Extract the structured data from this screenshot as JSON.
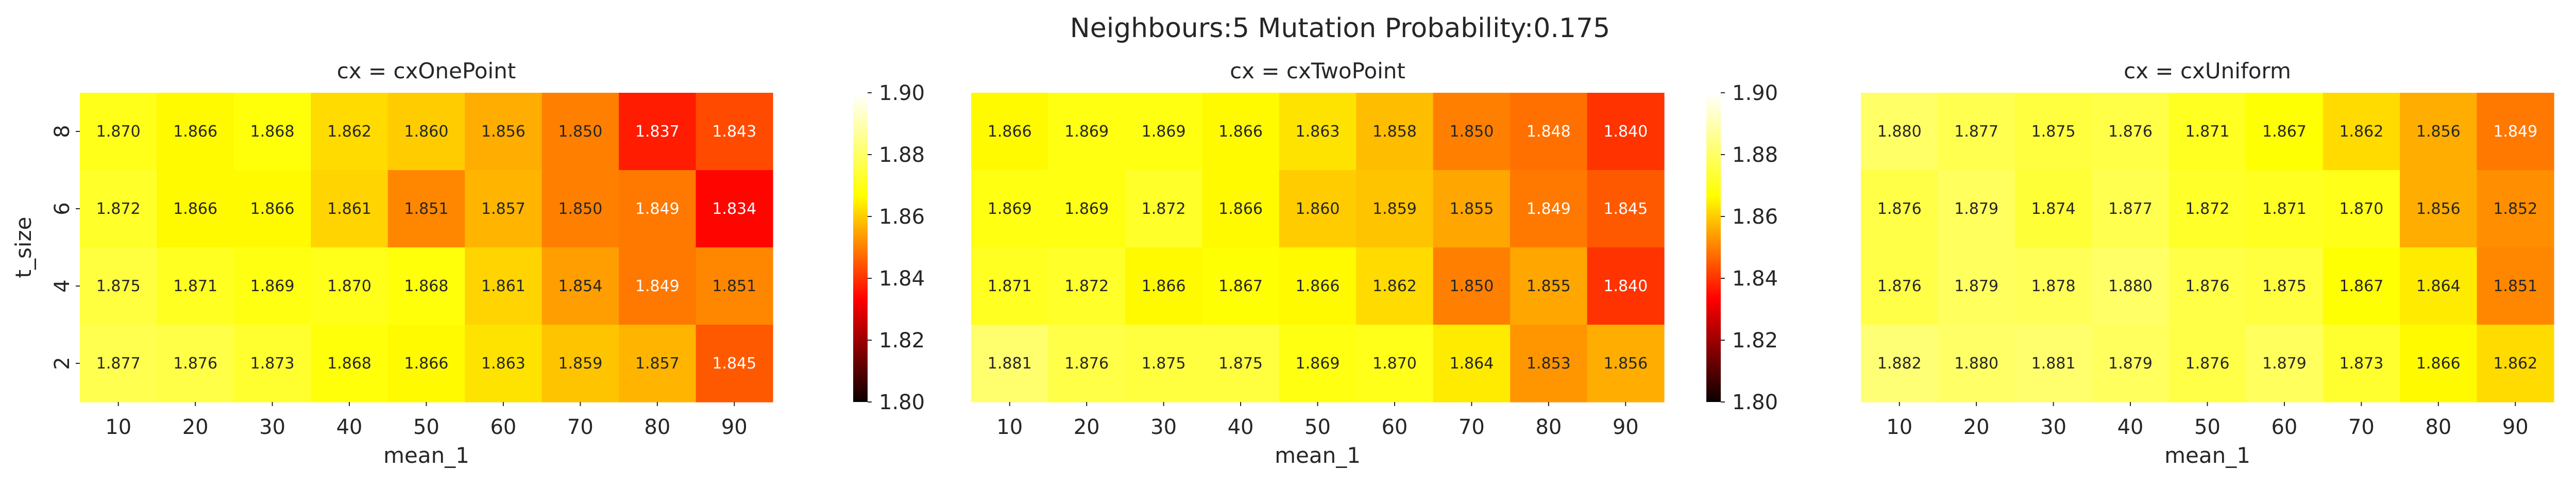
{
  "figure_title": "Neighbours:5 Mutation Probability:0.175",
  "colorscale": {
    "name": "hot",
    "stops": [
      [
        0.0,
        "#0b0000"
      ],
      [
        0.3333,
        "#ff0000"
      ],
      [
        0.6667,
        "#ffff00"
      ],
      [
        1.0,
        "#ffffff"
      ]
    ]
  },
  "chart_data": [
    {
      "type": "heatmap",
      "title": "cx = cxOnePoint",
      "xlabel": "mean_1",
      "ylabel": "t_size",
      "x": [
        10,
        20,
        30,
        40,
        50,
        60,
        70,
        80,
        90
      ],
      "y": [
        8,
        6,
        4,
        2
      ],
      "z": [
        [
          1.87,
          1.866,
          1.868,
          1.862,
          1.86,
          1.856,
          1.85,
          1.837,
          1.843
        ],
        [
          1.872,
          1.866,
          1.866,
          1.861,
          1.851,
          1.857,
          1.85,
          1.849,
          1.834
        ],
        [
          1.875,
          1.871,
          1.869,
          1.87,
          1.868,
          1.861,
          1.854,
          1.849,
          1.851
        ],
        [
          1.877,
          1.876,
          1.873,
          1.868,
          1.866,
          1.863,
          1.859,
          1.857,
          1.845
        ]
      ],
      "labels": [
        [
          "1.870",
          "1.866",
          "1.868",
          "1.862",
          "1.860",
          "1.856",
          "1.850",
          "1.837",
          "1.843"
        ],
        [
          "1.872",
          "1.866",
          "1.866",
          "1.861",
          "1.851",
          "1.857",
          "1.850",
          "1.849",
          "1.834"
        ],
        [
          "1.875",
          "1.871",
          "1.869",
          "1.870",
          "1.868",
          "1.861",
          "1.854",
          "1.849",
          "1.851"
        ],
        [
          "1.877",
          "1.876",
          "1.873",
          "1.868",
          "1.866",
          "1.863",
          "1.859",
          "1.857",
          "1.845"
        ]
      ],
      "vmin": 1.8,
      "vmax": 1.9,
      "colorbar_ticks": [
        "1.80",
        "1.82",
        "1.84",
        "1.86",
        "1.88",
        "1.90"
      ]
    },
    {
      "type": "heatmap",
      "title": "cx = cxTwoPoint",
      "xlabel": "mean_1",
      "ylabel": "",
      "x": [
        10,
        20,
        30,
        40,
        50,
        60,
        70,
        80,
        90
      ],
      "y": [
        8,
        6,
        4,
        2
      ],
      "z": [
        [
          1.866,
          1.869,
          1.869,
          1.866,
          1.863,
          1.858,
          1.85,
          1.848,
          1.84
        ],
        [
          1.869,
          1.869,
          1.872,
          1.866,
          1.86,
          1.859,
          1.855,
          1.849,
          1.845
        ],
        [
          1.871,
          1.872,
          1.866,
          1.867,
          1.866,
          1.862,
          1.85,
          1.855,
          1.84
        ],
        [
          1.881,
          1.876,
          1.875,
          1.875,
          1.869,
          1.87,
          1.864,
          1.853,
          1.856
        ]
      ],
      "labels": [
        [
          "1.866",
          "1.869",
          "1.869",
          "1.866",
          "1.863",
          "1.858",
          "1.850",
          "1.848",
          "1.840"
        ],
        [
          "1.869",
          "1.869",
          "1.872",
          "1.866",
          "1.860",
          "1.859",
          "1.855",
          "1.849",
          "1.845"
        ],
        [
          "1.871",
          "1.872",
          "1.866",
          "1.867",
          "1.866",
          "1.862",
          "1.850",
          "1.855",
          "1.840"
        ],
        [
          "1.881",
          "1.876",
          "1.875",
          "1.875",
          "1.869",
          "1.870",
          "1.864",
          "1.853",
          "1.856"
        ]
      ],
      "vmin": 1.8,
      "vmax": 1.9,
      "colorbar_ticks": [
        "1.80",
        "1.82",
        "1.84",
        "1.86",
        "1.88",
        "1.90"
      ]
    },
    {
      "type": "heatmap",
      "title": "cx = cxUniform",
      "xlabel": "mean_1",
      "ylabel": "",
      "x": [
        10,
        20,
        30,
        40,
        50,
        60,
        70,
        80,
        90
      ],
      "y": [
        8,
        6,
        4,
        2
      ],
      "z": [
        [
          1.88,
          1.877,
          1.875,
          1.876,
          1.871,
          1.867,
          1.862,
          1.856,
          1.849
        ],
        [
          1.876,
          1.879,
          1.874,
          1.877,
          1.872,
          1.871,
          1.87,
          1.856,
          1.852
        ],
        [
          1.876,
          1.879,
          1.878,
          1.88,
          1.876,
          1.875,
          1.867,
          1.864,
          1.851
        ],
        [
          1.882,
          1.88,
          1.881,
          1.879,
          1.876,
          1.879,
          1.873,
          1.866,
          1.862
        ]
      ],
      "labels": [
        [
          "1.880",
          "1.877",
          "1.875",
          "1.876",
          "1.871",
          "1.867",
          "1.862",
          "1.856",
          "1.849"
        ],
        [
          "1.876",
          "1.879",
          "1.874",
          "1.877",
          "1.872",
          "1.871",
          "1.870",
          "1.856",
          "1.852"
        ],
        [
          "1.876",
          "1.879",
          "1.878",
          "1.880",
          "1.876",
          "1.875",
          "1.867",
          "1.864",
          "1.851"
        ],
        [
          "1.882",
          "1.880",
          "1.881",
          "1.879",
          "1.876",
          "1.879",
          "1.873",
          "1.866",
          "1.862"
        ]
      ],
      "vmin": 1.8,
      "vmax": 1.9,
      "colorbar_ticks": [
        "1.80",
        "1.82",
        "1.84",
        "1.86",
        "1.88",
        "1.90"
      ]
    }
  ]
}
